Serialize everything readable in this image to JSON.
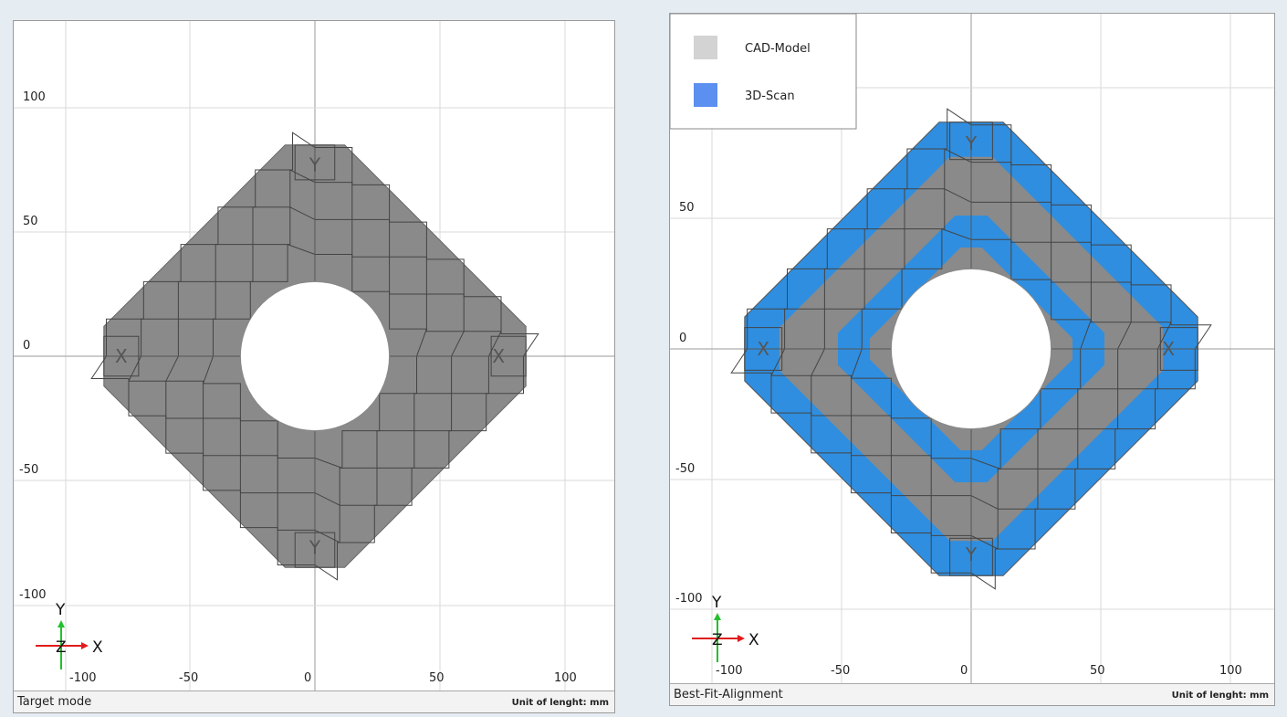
{
  "panels": [
    {
      "status_mode": "Target mode",
      "status_unit": "Unit of lenght: mm",
      "legend": null
    },
    {
      "status_mode": "Best-Fit-Alignment",
      "status_unit": "Unit of lenght: mm",
      "legend": {
        "items": [
          {
            "label": "CAD-Model",
            "color": "#d3d3d3"
          },
          {
            "label": "3D-Scan",
            "color": "#5b8ff0"
          }
        ]
      }
    }
  ],
  "x_ticks": [
    "-100",
    "-50",
    "0",
    "50",
    "100"
  ],
  "y_ticks": [
    "100",
    "50",
    "0",
    "-50",
    "-100"
  ],
  "axis_labels": {
    "x": "X",
    "y": "Y",
    "z": "Z"
  },
  "feature_marks": {
    "y_feature": "Y",
    "x_feature": "X"
  },
  "colors": {
    "part": "#8a8a8a",
    "scan": "#2f8ee0",
    "grid": "#d6d6d6",
    "axis_x": "#e11b1b",
    "axis_y": "#22c02a"
  }
}
